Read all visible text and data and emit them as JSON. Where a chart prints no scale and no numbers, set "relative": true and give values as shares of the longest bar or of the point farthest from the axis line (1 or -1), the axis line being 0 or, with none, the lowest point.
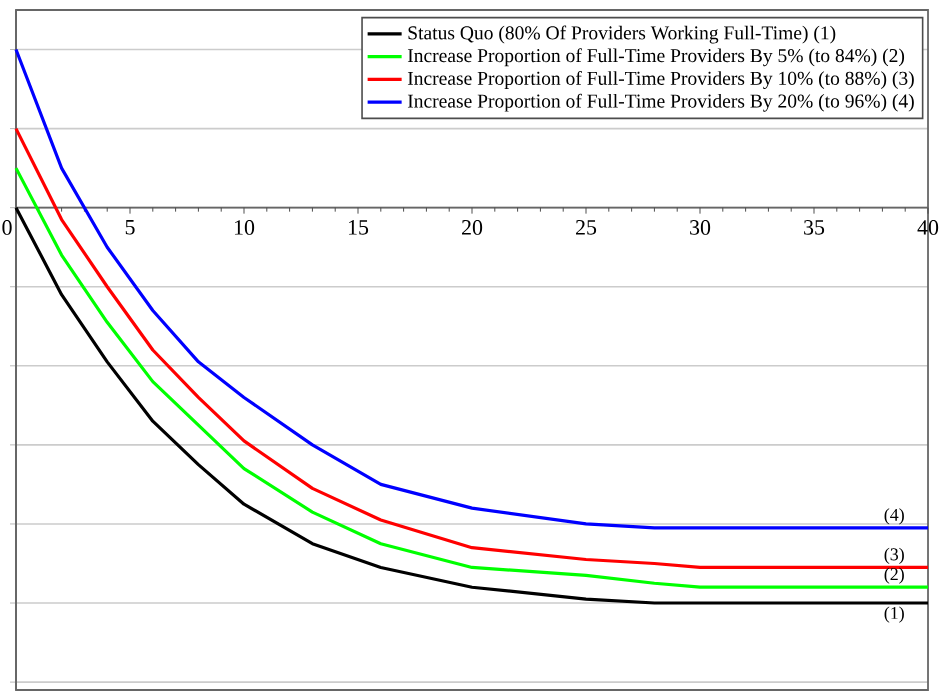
{
  "chart_data": {
    "type": "line",
    "relative": true,
    "x": [
      0,
      2,
      4,
      6,
      8,
      10,
      13,
      16,
      20,
      25,
      28,
      30,
      35,
      40
    ],
    "xlim": [
      0,
      40
    ],
    "xticks": [
      0,
      5,
      10,
      15,
      20,
      25,
      30,
      35,
      40
    ],
    "grid": "y",
    "legend": "top right",
    "marker": "none",
    "line_style": "solid",
    "series": [
      {
        "name": "Status Quo (80% Of Providers Working Full-Time) (1)",
        "color": "#000000",
        "values": [
          0,
          -0.22,
          -0.39,
          -0.54,
          -0.65,
          -0.75,
          -0.85,
          -0.91,
          -0.96,
          -0.99,
          -1.0,
          -1.0,
          -1.0,
          -1.0
        ]
      },
      {
        "name": "Increase Proportion of Full-Time Providers By 5% (to 84%) (2)",
        "color": "#00ff00",
        "values": [
          0.1,
          -0.12,
          -0.29,
          -0.44,
          -0.55,
          -0.66,
          -0.77,
          -0.85,
          -0.91,
          -0.93,
          -0.95,
          -0.96,
          -0.96,
          -0.96
        ]
      },
      {
        "name": "Increase Proportion of Full-Time Providers By 10% (to 88%) (3)",
        "color": "#ff0000",
        "values": [
          0.2,
          -0.03,
          -0.2,
          -0.36,
          -0.48,
          -0.59,
          -0.71,
          -0.79,
          -0.86,
          -0.89,
          -0.9,
          -0.91,
          -0.91,
          -0.91
        ]
      },
      {
        "name": "Increase Proportion of Full-Time Providers By 20% (to 96%) (4)",
        "color": "#0000ff",
        "values": [
          0.4,
          0.1,
          -0.1,
          -0.26,
          -0.39,
          -0.48,
          -0.6,
          -0.7,
          -0.76,
          -0.8,
          -0.81,
          -0.81,
          -0.81,
          -0.81
        ]
      }
    ],
    "annotations": [
      "(4)",
      "(3)",
      "(2)",
      "(1)"
    ]
  }
}
